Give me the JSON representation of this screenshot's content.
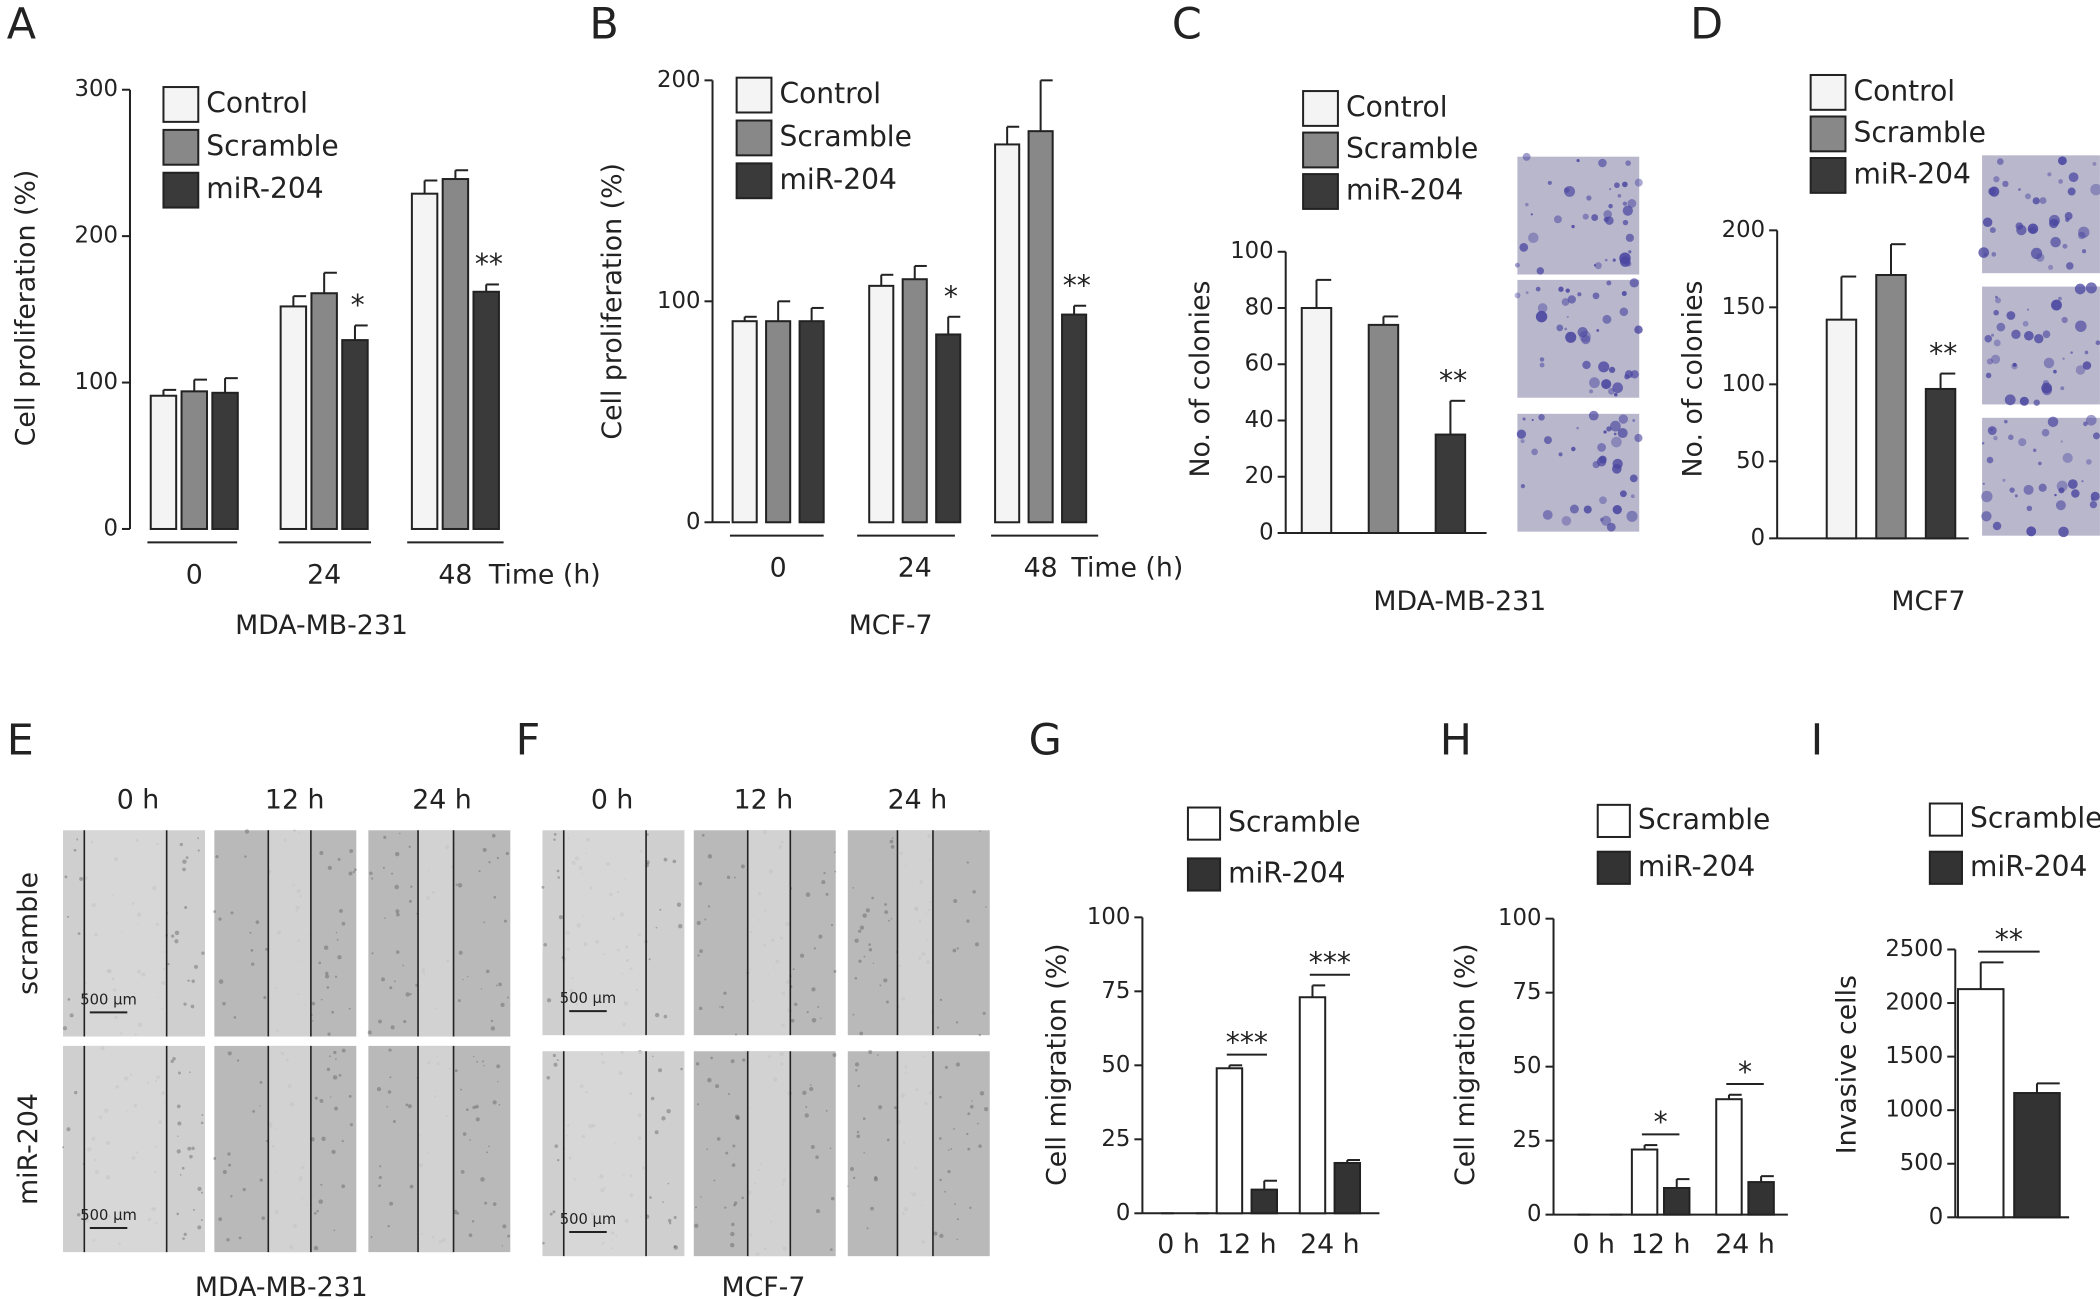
{
  "chart_data": [
    {
      "panel": "A",
      "type": "bar",
      "categories": [
        "0",
        "24",
        "48"
      ],
      "time_label": "Time (h)",
      "xlabel": "MDA-MB-231",
      "ylabel": "Cell proliferation (%)",
      "ylim": [
        0,
        300
      ],
      "yticks": [
        0,
        100,
        200,
        300
      ],
      "legend": "upper left",
      "series": [
        {
          "name": "Control",
          "color": "#f4f4f4",
          "values": [
            91,
            152,
            229
          ],
          "errors": [
            4,
            7,
            9
          ]
        },
        {
          "name": "Scramble",
          "color": "#888888",
          "values": [
            94,
            161,
            239
          ],
          "errors": [
            8,
            14,
            6
          ]
        },
        {
          "name": "miR-204",
          "color": "#3a3a3a",
          "values": [
            93,
            129,
            162
          ],
          "errors": [
            10,
            10,
            5
          ],
          "significance": [
            null,
            "*",
            "**"
          ]
        }
      ]
    },
    {
      "panel": "B",
      "type": "bar",
      "categories": [
        "0",
        "24",
        "48"
      ],
      "time_label": "Time (h)",
      "xlabel": "MCF-7",
      "ylabel": "Cell proliferation (%)",
      "ylim": [
        0,
        200
      ],
      "yticks": [
        0,
        100,
        200
      ],
      "legend": "upper left",
      "series": [
        {
          "name": "Control",
          "color": "#f4f4f4",
          "values": [
            91,
            107,
            171
          ],
          "errors": [
            2,
            5,
            8
          ]
        },
        {
          "name": "Scramble",
          "color": "#888888",
          "values": [
            91,
            110,
            177
          ],
          "errors": [
            9,
            6,
            23
          ]
        },
        {
          "name": "miR-204",
          "color": "#3a3a3a",
          "values": [
            91,
            85,
            94
          ],
          "errors": [
            6,
            8,
            4
          ],
          "significance": [
            null,
            "*",
            "**"
          ]
        }
      ]
    },
    {
      "panel": "C",
      "type": "bar",
      "categories": [
        null
      ],
      "xlabel": "MDA-MB-231",
      "ylabel": "No. of colonies",
      "ylim": [
        0,
        100
      ],
      "yticks": [
        0,
        20,
        40,
        60,
        80,
        100
      ],
      "legend": "upper left",
      "series": [
        {
          "name": "Control",
          "color": "#f4f4f4",
          "values": [
            80
          ],
          "errors": [
            10
          ]
        },
        {
          "name": "Scramble",
          "color": "#888888",
          "values": [
            74
          ],
          "errors": [
            3
          ]
        },
        {
          "name": "miR-204",
          "color": "#3a3a3a",
          "values": [
            35
          ],
          "errors": [
            12
          ],
          "significance": [
            "**"
          ]
        }
      ]
    },
    {
      "panel": "D",
      "type": "bar",
      "categories": [
        null
      ],
      "xlabel": "MCF7",
      "ylabel": "No. of colonies",
      "ylim": [
        0,
        200
      ],
      "yticks": [
        0,
        50,
        100,
        150,
        200
      ],
      "legend": "upper left",
      "series": [
        {
          "name": "Control",
          "color": "#f4f4f4",
          "values": [
            142
          ],
          "errors": [
            28
          ]
        },
        {
          "name": "Scramble",
          "color": "#888888",
          "values": [
            171
          ],
          "errors": [
            20
          ]
        },
        {
          "name": "miR-204",
          "color": "#3a3a3a",
          "values": [
            97
          ],
          "errors": [
            10
          ],
          "significance": [
            "**"
          ]
        }
      ]
    },
    {
      "panel": "G",
      "type": "bar",
      "categories": [
        "0 h",
        "12 h",
        "24 h"
      ],
      "ylabel": "Cell migration (%)",
      "ylim": [
        0,
        100
      ],
      "yticks": [
        0,
        25,
        50,
        75,
        100
      ],
      "legend": "upper left",
      "series": [
        {
          "name": "Scramble",
          "color": "#ffffff",
          "values": [
            0,
            49,
            73
          ],
          "errors": [
            0,
            1,
            4
          ]
        },
        {
          "name": "miR-204",
          "color": "#333333",
          "values": [
            0,
            8,
            17
          ],
          "errors": [
            0,
            3,
            1
          ]
        }
      ],
      "brackets": [
        null,
        "***",
        "***"
      ]
    },
    {
      "panel": "H",
      "type": "bar",
      "categories": [
        "0 h",
        "12 h",
        "24 h"
      ],
      "ylabel": "Cell migration (%)",
      "ylim": [
        0,
        100
      ],
      "yticks": [
        0,
        25,
        50,
        75,
        100
      ],
      "legend": "upper left",
      "series": [
        {
          "name": "Scramble",
          "color": "#ffffff",
          "values": [
            0,
            22,
            39
          ],
          "errors": [
            0,
            1.5,
            1.5
          ]
        },
        {
          "name": "miR-204",
          "color": "#333333",
          "values": [
            0,
            9,
            11
          ],
          "errors": [
            0,
            3,
            2
          ]
        }
      ],
      "brackets": [
        null,
        "*",
        "*"
      ]
    },
    {
      "panel": "I",
      "type": "bar",
      "categories": [
        null
      ],
      "ylabel": "Invasive cells",
      "ylim": [
        0,
        2500
      ],
      "yticks": [
        0,
        500,
        1000,
        1500,
        2000,
        2500
      ],
      "legend": "upper left",
      "series": [
        {
          "name": "Scramble",
          "color": "#ffffff",
          "values": [
            2130
          ],
          "errors": [
            250
          ]
        },
        {
          "name": "miR-204",
          "color": "#333333",
          "values": [
            1160
          ],
          "errors": [
            90
          ]
        }
      ],
      "brackets": [
        "**"
      ]
    }
  ],
  "micrographs": [
    {
      "panel": "E",
      "times": [
        "0 h",
        "12 h",
        "24 h"
      ],
      "rows": [
        "scramble",
        "miR-204"
      ],
      "scale_bar": "500 µm",
      "cell_line": "MDA-MB-231"
    },
    {
      "panel": "F",
      "times": [
        "0 h",
        "12 h",
        "24 h"
      ],
      "scale_bar": "500 µm",
      "cell_line": "MCF-7"
    }
  ]
}
